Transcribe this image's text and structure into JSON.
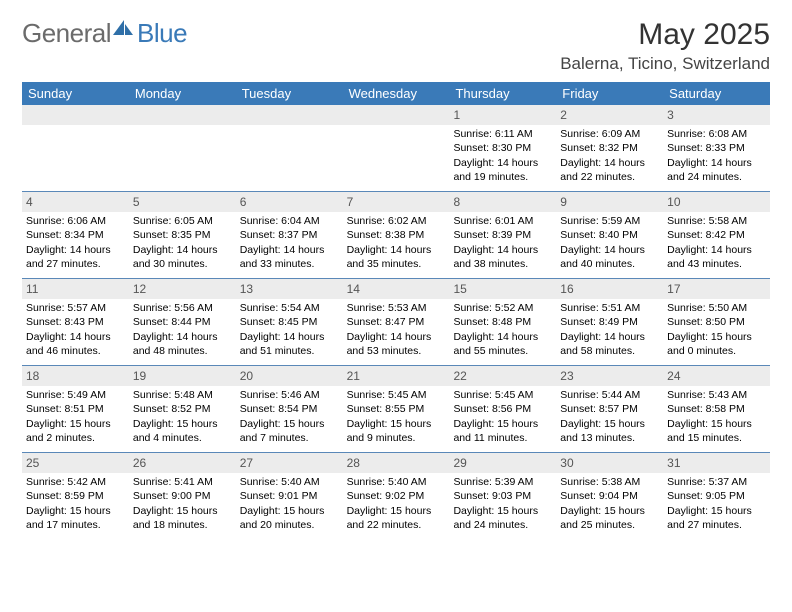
{
  "logo": {
    "text_gray": "General",
    "text_blue": "Blue"
  },
  "title": "May 2025",
  "location": "Balerna, Ticino, Switzerland",
  "colors": {
    "header_bg": "#3a7ab8",
    "daynum_bg": "#ececec",
    "week_border": "#5a88b8"
  },
  "weekdays": [
    "Sunday",
    "Monday",
    "Tuesday",
    "Wednesday",
    "Thursday",
    "Friday",
    "Saturday"
  ],
  "weeks": [
    [
      {
        "n": "",
        "sr": "",
        "ss": "",
        "dl": ""
      },
      {
        "n": "",
        "sr": "",
        "ss": "",
        "dl": ""
      },
      {
        "n": "",
        "sr": "",
        "ss": "",
        "dl": ""
      },
      {
        "n": "",
        "sr": "",
        "ss": "",
        "dl": ""
      },
      {
        "n": "1",
        "sr": "Sunrise: 6:11 AM",
        "ss": "Sunset: 8:30 PM",
        "dl": "Daylight: 14 hours and 19 minutes."
      },
      {
        "n": "2",
        "sr": "Sunrise: 6:09 AM",
        "ss": "Sunset: 8:32 PM",
        "dl": "Daylight: 14 hours and 22 minutes."
      },
      {
        "n": "3",
        "sr": "Sunrise: 6:08 AM",
        "ss": "Sunset: 8:33 PM",
        "dl": "Daylight: 14 hours and 24 minutes."
      }
    ],
    [
      {
        "n": "4",
        "sr": "Sunrise: 6:06 AM",
        "ss": "Sunset: 8:34 PM",
        "dl": "Daylight: 14 hours and 27 minutes."
      },
      {
        "n": "5",
        "sr": "Sunrise: 6:05 AM",
        "ss": "Sunset: 8:35 PM",
        "dl": "Daylight: 14 hours and 30 minutes."
      },
      {
        "n": "6",
        "sr": "Sunrise: 6:04 AM",
        "ss": "Sunset: 8:37 PM",
        "dl": "Daylight: 14 hours and 33 minutes."
      },
      {
        "n": "7",
        "sr": "Sunrise: 6:02 AM",
        "ss": "Sunset: 8:38 PM",
        "dl": "Daylight: 14 hours and 35 minutes."
      },
      {
        "n": "8",
        "sr": "Sunrise: 6:01 AM",
        "ss": "Sunset: 8:39 PM",
        "dl": "Daylight: 14 hours and 38 minutes."
      },
      {
        "n": "9",
        "sr": "Sunrise: 5:59 AM",
        "ss": "Sunset: 8:40 PM",
        "dl": "Daylight: 14 hours and 40 minutes."
      },
      {
        "n": "10",
        "sr": "Sunrise: 5:58 AM",
        "ss": "Sunset: 8:42 PM",
        "dl": "Daylight: 14 hours and 43 minutes."
      }
    ],
    [
      {
        "n": "11",
        "sr": "Sunrise: 5:57 AM",
        "ss": "Sunset: 8:43 PM",
        "dl": "Daylight: 14 hours and 46 minutes."
      },
      {
        "n": "12",
        "sr": "Sunrise: 5:56 AM",
        "ss": "Sunset: 8:44 PM",
        "dl": "Daylight: 14 hours and 48 minutes."
      },
      {
        "n": "13",
        "sr": "Sunrise: 5:54 AM",
        "ss": "Sunset: 8:45 PM",
        "dl": "Daylight: 14 hours and 51 minutes."
      },
      {
        "n": "14",
        "sr": "Sunrise: 5:53 AM",
        "ss": "Sunset: 8:47 PM",
        "dl": "Daylight: 14 hours and 53 minutes."
      },
      {
        "n": "15",
        "sr": "Sunrise: 5:52 AM",
        "ss": "Sunset: 8:48 PM",
        "dl": "Daylight: 14 hours and 55 minutes."
      },
      {
        "n": "16",
        "sr": "Sunrise: 5:51 AM",
        "ss": "Sunset: 8:49 PM",
        "dl": "Daylight: 14 hours and 58 minutes."
      },
      {
        "n": "17",
        "sr": "Sunrise: 5:50 AM",
        "ss": "Sunset: 8:50 PM",
        "dl": "Daylight: 15 hours and 0 minutes."
      }
    ],
    [
      {
        "n": "18",
        "sr": "Sunrise: 5:49 AM",
        "ss": "Sunset: 8:51 PM",
        "dl": "Daylight: 15 hours and 2 minutes."
      },
      {
        "n": "19",
        "sr": "Sunrise: 5:48 AM",
        "ss": "Sunset: 8:52 PM",
        "dl": "Daylight: 15 hours and 4 minutes."
      },
      {
        "n": "20",
        "sr": "Sunrise: 5:46 AM",
        "ss": "Sunset: 8:54 PM",
        "dl": "Daylight: 15 hours and 7 minutes."
      },
      {
        "n": "21",
        "sr": "Sunrise: 5:45 AM",
        "ss": "Sunset: 8:55 PM",
        "dl": "Daylight: 15 hours and 9 minutes."
      },
      {
        "n": "22",
        "sr": "Sunrise: 5:45 AM",
        "ss": "Sunset: 8:56 PM",
        "dl": "Daylight: 15 hours and 11 minutes."
      },
      {
        "n": "23",
        "sr": "Sunrise: 5:44 AM",
        "ss": "Sunset: 8:57 PM",
        "dl": "Daylight: 15 hours and 13 minutes."
      },
      {
        "n": "24",
        "sr": "Sunrise: 5:43 AM",
        "ss": "Sunset: 8:58 PM",
        "dl": "Daylight: 15 hours and 15 minutes."
      }
    ],
    [
      {
        "n": "25",
        "sr": "Sunrise: 5:42 AM",
        "ss": "Sunset: 8:59 PM",
        "dl": "Daylight: 15 hours and 17 minutes."
      },
      {
        "n": "26",
        "sr": "Sunrise: 5:41 AM",
        "ss": "Sunset: 9:00 PM",
        "dl": "Daylight: 15 hours and 18 minutes."
      },
      {
        "n": "27",
        "sr": "Sunrise: 5:40 AM",
        "ss": "Sunset: 9:01 PM",
        "dl": "Daylight: 15 hours and 20 minutes."
      },
      {
        "n": "28",
        "sr": "Sunrise: 5:40 AM",
        "ss": "Sunset: 9:02 PM",
        "dl": "Daylight: 15 hours and 22 minutes."
      },
      {
        "n": "29",
        "sr": "Sunrise: 5:39 AM",
        "ss": "Sunset: 9:03 PM",
        "dl": "Daylight: 15 hours and 24 minutes."
      },
      {
        "n": "30",
        "sr": "Sunrise: 5:38 AM",
        "ss": "Sunset: 9:04 PM",
        "dl": "Daylight: 15 hours and 25 minutes."
      },
      {
        "n": "31",
        "sr": "Sunrise: 5:37 AM",
        "ss": "Sunset: 9:05 PM",
        "dl": "Daylight: 15 hours and 27 minutes."
      }
    ]
  ]
}
